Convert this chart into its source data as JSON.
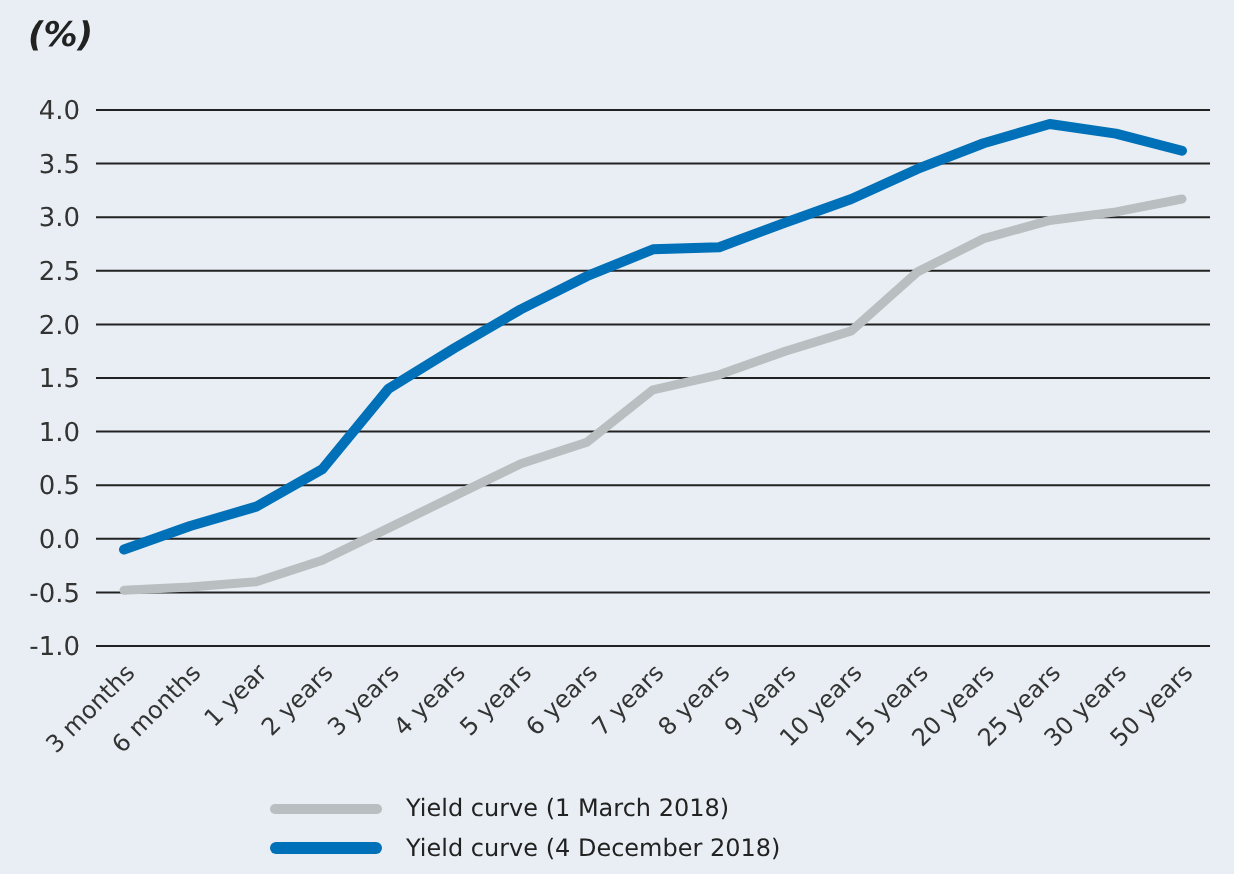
{
  "chart_data": {
    "type": "line",
    "ylabel": "(%)",
    "categories": [
      "3 months",
      "6 months",
      "1 year",
      "2 years",
      "3 years",
      "4 years",
      "5 years",
      "6 years",
      "7 years",
      "8 years",
      "9 years",
      "10 years",
      "15 years",
      "20 years",
      "25 years",
      "30 years",
      "50 years"
    ],
    "series": [
      {
        "name": "Yield curve (1 March 2018)",
        "color": "#b9bfc0",
        "values": [
          -0.48,
          -0.45,
          -0.4,
          -0.2,
          0.1,
          0.4,
          0.7,
          0.9,
          1.39,
          1.53,
          1.75,
          1.94,
          2.49,
          2.8,
          2.97,
          3.05,
          3.17
        ]
      },
      {
        "name": "Yield curve (4 December 2018)",
        "color": "#0070b8",
        "values": [
          -0.1,
          0.12,
          0.3,
          0.65,
          1.4,
          1.78,
          2.14,
          2.45,
          2.7,
          2.72,
          2.95,
          3.17,
          3.45,
          3.69,
          3.87,
          3.78,
          3.62
        ]
      }
    ],
    "ylim": [
      -1,
      4
    ],
    "yticks": [
      {
        "value": -1,
        "label": "-1.0"
      },
      -0.5,
      {
        "value": 0,
        "label": "0.0"
      },
      0.5,
      {
        "value": 1,
        "label": "1.0"
      },
      1.5,
      {
        "value": 2,
        "label": "2.0"
      },
      2.5,
      {
        "value": 3,
        "label": "3.0"
      },
      3.5,
      {
        "value": 4,
        "label": "4.0"
      }
    ],
    "grid": "y",
    "legend": "bottom",
    "marker": "none",
    "line_style": "solid"
  }
}
